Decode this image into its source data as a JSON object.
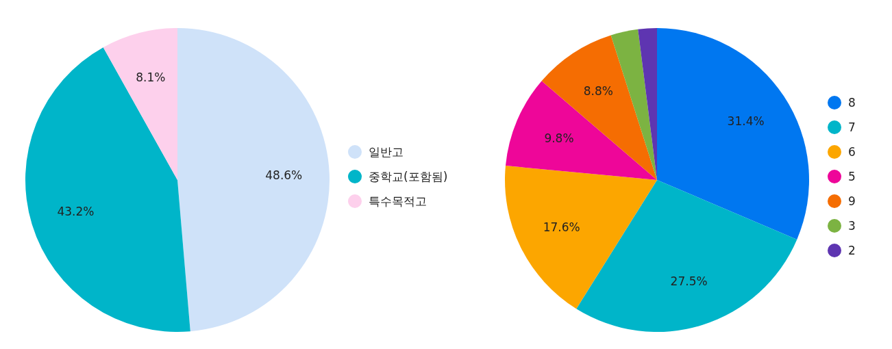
{
  "chart_data": [
    {
      "type": "pie",
      "categories": [
        "일반고",
        "중학교(포함됨)",
        "특수목적고"
      ],
      "values": [
        48.6,
        43.2,
        8.1
      ],
      "colors": [
        "#cfe2f9",
        "#00b5c9",
        "#fdd0ec"
      ],
      "value_labels": [
        "48.6%",
        "43.2%",
        "8.1%"
      ],
      "legend": "right"
    },
    {
      "type": "pie",
      "categories": [
        "8",
        "7",
        "6",
        "5",
        "9",
        "3",
        "2"
      ],
      "values": [
        31.4,
        27.5,
        17.6,
        9.8,
        8.8,
        2.9,
        2.0
      ],
      "colors": [
        "#0077f0",
        "#00b5c9",
        "#fca600",
        "#ee0699",
        "#f56d02",
        "#7cb342",
        "#5e35b1"
      ],
      "value_labels": [
        "31.4%",
        "27.5%",
        "17.6%",
        "9.8%",
        "8.8%",
        null,
        null
      ],
      "legend": "right"
    }
  ]
}
